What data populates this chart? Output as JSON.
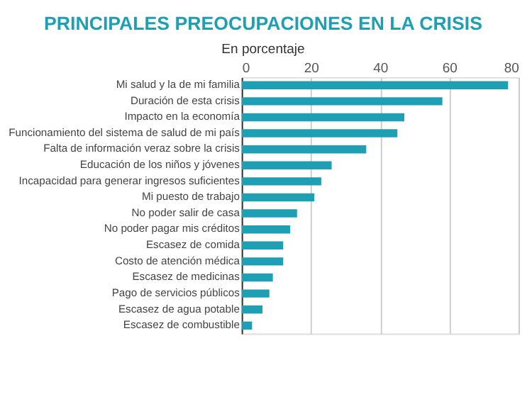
{
  "chart_data": {
    "type": "bar",
    "orientation": "horizontal",
    "title": "PRINCIPALES PREOCUPACIONES EN LA CRISIS",
    "subtitle": "En porcentaje",
    "categories": [
      "Mi salud y la de mi familia",
      "Duración de esta crisis",
      "Impacto en la economía",
      "Funcionamiento del sistema de salud de mi país",
      "Falta de información veraz sobre la crisis",
      "Educación de los niños y jóvenes",
      "Incapacidad para generar ingresos suficientes",
      "Mi puesto de trabajo",
      "No poder salir de casa",
      "No poder pagar mis créditos",
      "Escasez de comida",
      "Costo de atención médica",
      "Escasez de medicinas",
      "Pago de servicios públicos",
      "Escasez de agua potable",
      "Escasez de combustible"
    ],
    "values": [
      77,
      58,
      47,
      45,
      36,
      26,
      23,
      21,
      16,
      14,
      12,
      12,
      9,
      8,
      6,
      3
    ],
    "color": "#1f9fb4",
    "xlim": [
      0,
      80
    ],
    "xticks": [
      0,
      20,
      40,
      60,
      80
    ],
    "grid": "x"
  }
}
